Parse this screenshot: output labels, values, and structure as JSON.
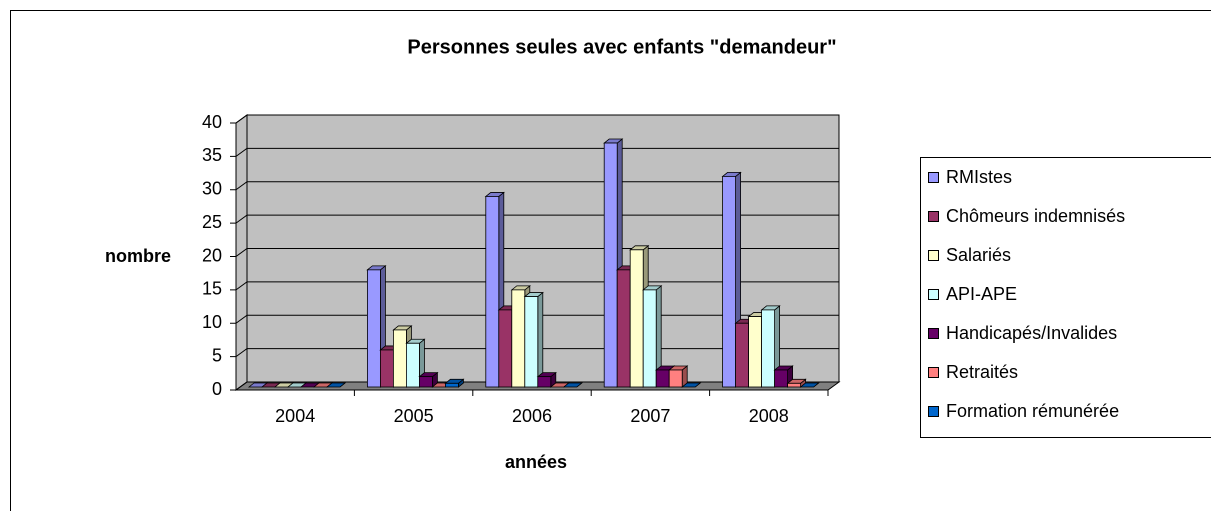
{
  "chart_data": {
    "type": "bar3d",
    "title": "Personnes seules avec enfants \"demandeur\"",
    "x_label": "années",
    "y_label": "nombre",
    "categories": [
      "2004",
      "2005",
      "2006",
      "2007",
      "2008"
    ],
    "series": [
      {
        "name": "RMIstes",
        "color": "#9999FF",
        "values": [
          0,
          18,
          29,
          37,
          32
        ]
      },
      {
        "name": "Chômeurs indemnisés",
        "color": "#993366",
        "values": [
          0,
          6,
          12,
          18,
          10
        ]
      },
      {
        "name": "Salariés",
        "color": "#FFFFCC",
        "values": [
          0,
          9,
          15,
          21,
          11
        ]
      },
      {
        "name": "API-APE",
        "color": "#CCFFFF",
        "values": [
          0,
          7,
          14,
          15,
          12
        ]
      },
      {
        "name": "Handicapés/Invalides",
        "color": "#660066",
        "values": [
          0,
          2,
          2,
          3,
          3
        ]
      },
      {
        "name": "Retraités",
        "color": "#FF8080",
        "values": [
          0,
          0,
          0,
          3,
          1
        ]
      },
      {
        "name": "Formation rémunérée",
        "color": "#0066CC",
        "values": [
          0,
          1,
          0,
          0,
          0
        ]
      }
    ],
    "ylim": [
      0,
      40
    ],
    "yticks": [
      0,
      5,
      10,
      15,
      20,
      25,
      30,
      35,
      40
    ],
    "grid": true,
    "legend": "right"
  }
}
